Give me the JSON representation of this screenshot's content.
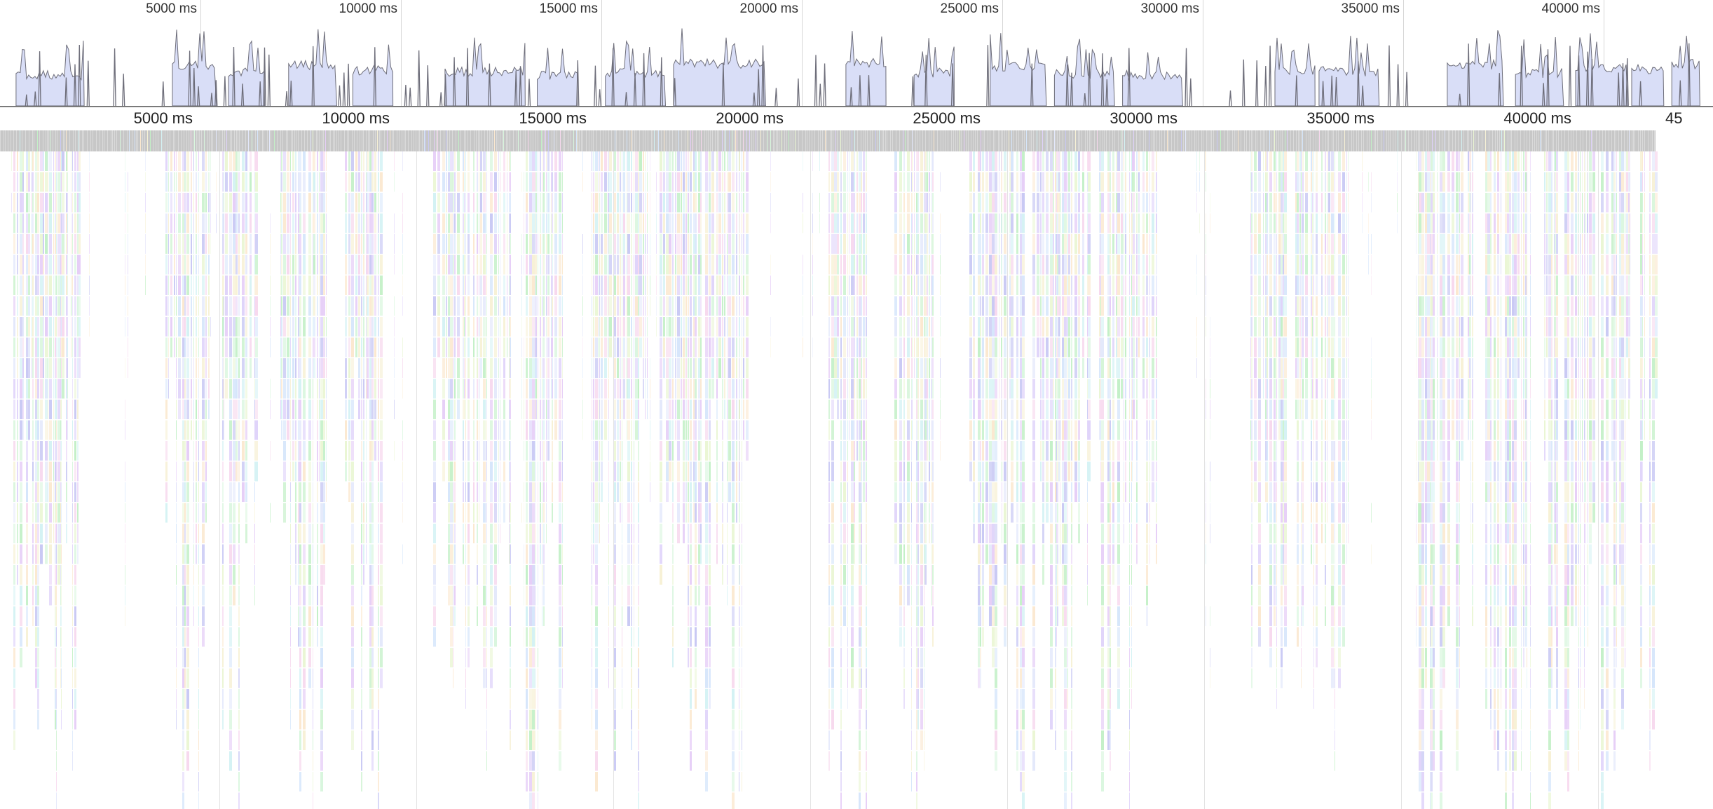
{
  "overview": {
    "time_ticks": [
      {
        "ms": 5000,
        "label": "5000 ms"
      },
      {
        "ms": 10000,
        "label": "10000 ms"
      },
      {
        "ms": 15000,
        "label": "15000 ms"
      },
      {
        "ms": 20000,
        "label": "20000 ms"
      },
      {
        "ms": 25000,
        "label": "25000 ms"
      },
      {
        "ms": 30000,
        "label": "30000 ms"
      },
      {
        "ms": 35000,
        "label": "35000 ms"
      },
      {
        "ms": 40000,
        "label": "40000 ms"
      }
    ]
  },
  "ruler": {
    "ticks": [
      {
        "ms": 5000,
        "label": "5000 ms"
      },
      {
        "ms": 10000,
        "label": "10000 ms"
      },
      {
        "ms": 15000,
        "label": "15000 ms"
      },
      {
        "ms": 20000,
        "label": "20000 ms"
      },
      {
        "ms": 25000,
        "label": "25000 ms"
      },
      {
        "ms": 30000,
        "label": "30000 ms"
      },
      {
        "ms": 35000,
        "label": "35000 ms"
      },
      {
        "ms": 40000,
        "label": "40000 ms"
      },
      {
        "ms": 45000,
        "label": "45"
      }
    ]
  },
  "colors": {
    "cpu_fill": "#d9def7",
    "cpu_stroke": "#6e6e7a",
    "main_track": "#c7c7c7",
    "flame_palette": [
      "#e6cef7",
      "#c9c9f4",
      "#d6e6fb",
      "#d9f6de",
      "#f7f1d6",
      "#f7d9ee",
      "#d4f2f4",
      "#eaf6d4",
      "#e3e8fb",
      "#c3f0c7",
      "#fbe8cf",
      "#dfd3fa"
    ]
  },
  "activity_segments": [
    {
      "start_ms": 400,
      "end_ms": 2100
    },
    {
      "start_ms": 4300,
      "end_ms": 5400
    },
    {
      "start_ms": 5700,
      "end_ms": 6600
    },
    {
      "start_ms": 7200,
      "end_ms": 8400
    },
    {
      "start_ms": 8800,
      "end_ms": 9800
    },
    {
      "start_ms": 11100,
      "end_ms": 13100
    },
    {
      "start_ms": 13400,
      "end_ms": 14400
    },
    {
      "start_ms": 15100,
      "end_ms": 16600
    },
    {
      "start_ms": 16800,
      "end_ms": 19100
    },
    {
      "start_ms": 21100,
      "end_ms": 22100
    },
    {
      "start_ms": 22800,
      "end_ms": 23800
    },
    {
      "start_ms": 24700,
      "end_ms": 26100
    },
    {
      "start_ms": 26300,
      "end_ms": 27800
    },
    {
      "start_ms": 28000,
      "end_ms": 29500
    },
    {
      "start_ms": 31800,
      "end_ms": 32800
    },
    {
      "start_ms": 32900,
      "end_ms": 34400
    },
    {
      "start_ms": 36100,
      "end_ms": 37500
    },
    {
      "start_ms": 37800,
      "end_ms": 39000
    },
    {
      "start_ms": 39300,
      "end_ms": 40600
    },
    {
      "start_ms": 40700,
      "end_ms": 41500
    },
    {
      "start_ms": 41700,
      "end_ms": 42400
    }
  ]
}
